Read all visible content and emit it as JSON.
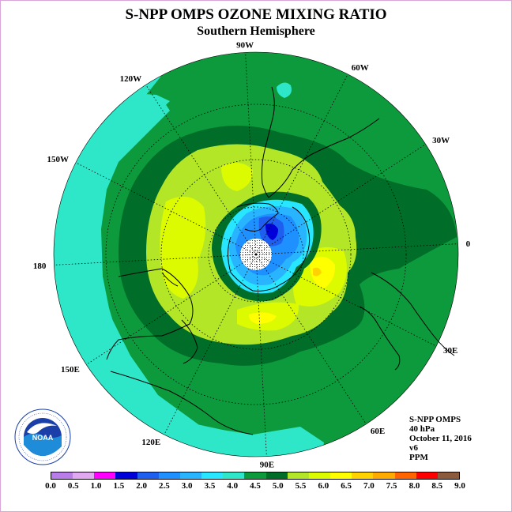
{
  "title": "S-NPP OMPS OZONE MIXING RATIO",
  "subtitle": "Southern Hemisphere",
  "longitude_labels": [
    {
      "text": "90W",
      "lon": -90
    },
    {
      "text": "60W",
      "lon": -60
    },
    {
      "text": "30W",
      "lon": -30
    },
    {
      "text": "0",
      "lon": 0
    },
    {
      "text": "30E",
      "lon": 30
    },
    {
      "text": "60E",
      "lon": 60
    },
    {
      "text": "90E",
      "lon": 90
    },
    {
      "text": "120E",
      "lon": 120
    },
    {
      "text": "150E",
      "lon": 150
    },
    {
      "text": "180",
      "lon": 180
    },
    {
      "text": "150W",
      "lon": -150
    },
    {
      "text": "120W",
      "lon": -120
    }
  ],
  "info": {
    "instrument": "S-NPP OMPS",
    "level": "40 hPa",
    "date": "October 11, 2016",
    "version": "v6",
    "units": "PPM"
  },
  "logo": {
    "text": "NOAA",
    "ring_text": "NATIONAL OCEANIC AND ATMOSPHERIC ADMINISTRATION · U.S. DEPARTMENT OF COMMERCE"
  },
  "colorbar": {
    "ticks": [
      "0.0",
      "0.5",
      "1.0",
      "1.5",
      "2.0",
      "2.5",
      "3.0",
      "3.5",
      "4.0",
      "4.5",
      "5.0",
      "5.5",
      "6.0",
      "6.5",
      "7.0",
      "7.5",
      "8.0",
      "8.5",
      "9.0"
    ],
    "colors": [
      "#b87de8",
      "#e0a8f0",
      "#ff00ff",
      "#0000d8",
      "#1e5ff0",
      "#1e90ff",
      "#28b4ff",
      "#28e6ff",
      "#2ee6c8",
      "#0c9a3c",
      "#006e28",
      "#b4e628",
      "#dcfa00",
      "#ffff00",
      "#ffd200",
      "#ffaa00",
      "#ff6400",
      "#ff0000",
      "#8c5a3c"
    ]
  },
  "legend_colors": {
    "ocean_cyan": "#2ee6c8",
    "green_4_5": "#0c9a3c",
    "dark_5_0": "#006e28",
    "lime_5_5": "#b4e628",
    "yellow_green_6_0": "#dcfa00",
    "yellow_6_5": "#ffff00",
    "blue_2_0": "#1e5ff0",
    "blue_2_5": "#1e90ff",
    "blue_3_0": "#28b4ff",
    "cyan_3_5": "#28e6ff",
    "navy_1_5": "#0000d8"
  }
}
